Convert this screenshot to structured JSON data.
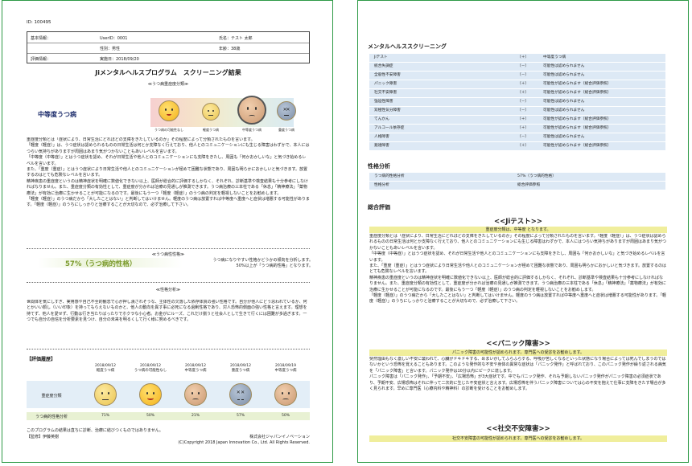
{
  "page1": {
    "id_line": "ID: 100495",
    "info": {
      "basic_label": "基本情報：",
      "userid": "UserID：0001",
      "name": "氏名：テスト 太郎",
      "gender": "性別：男性",
      "age": "年齢：38歳",
      "eval_label": "評価情報：",
      "date": "実施日：2018/09/20"
    },
    "title": "Jiメンタルヘルスプログラム　スクリーニング結果",
    "severity": {
      "section_label": "≪うつ病重症度分類≫",
      "result": "中等度うつ病",
      "scale_labels": [
        "うつ病の可能性なし",
        "軽度うつ病",
        "中等度うつ病",
        "重度うつ病"
      ],
      "text": "重症度分類とは「症状により、日常生活にどれほどの支障をきたしているのか」その程度によって分類されたものを言います。\n「軽度（軽症）」は、うつ症状は認められるものの日常生活は何とか支障なく行えており、他人とのコミュニケーションにも生じる障害はわずかで、本人にはつらい気持ちがありますが周囲はあまり気がつかないこともあいレベルを言います。\n「中等度（中等症）」とはうつ症状を認め、それが日常生活や他人とのコミュニケーションにも支障をきたし、周囲も「何かおかしいな」と気づき始めるレベルを言います。\nまた、「重度（重症）」とはうつ症状により日常生活や他人とのコミュニケーションが極めて困難な状態であり、周囲も明らかにおかしいと気づきます。放置するのはとても危険なレベルを言います。\n精神疾患の重症度というのは精神症状を明確に数値化できない以上、医師が総合的に評価するしかなく、それぞれ、診断基準や検査結果も十分参考にしなければなりません。また、重症度分類の有効性として、重症度が分かれば治療の見通しが推測できます。うつ病治療の三本柱である「休息」「精神療法」「薬物療法」が有効に治療に生かせることが可能になるのです。最後にもう一つ「軽度（軽症）」のうつ病の判定を軽視しないことをお勧めします。\n「軽度（軽症）」のうつ病だから「大したことはない」と判断してはいけません。軽度のうつ病は放置すれば中等度へ重度へと症状は増悪する可能性があります。「軽度（軽症）」のうちにしっかりと治療することが大切なので、必ず治療して下さい。"
    },
    "tendency": {
      "section_label": "≪うつ病性性格≫",
      "percent": "57%（うつ病的性格）",
      "note": "うつ病になりやすい性格かどうかの傾向を分析します。\n50%以上が「うつ病的性格」となります。"
    },
    "personality": {
      "section_label": "≪性格分析≫",
      "text": "世間体を気にしすぎ、実用感や自己不全的観念で心が押し潰されそうな、主体性の欠落した依存体質の強い性格です。自分が他人にどう思われているか、何とかいい顔し（いい印象）を持ってもらえないものかと、他人の動向を異す事に必死になる過剰性格であり、対人恐怖的側面の強い性格と言えます。理想を持てず、他人を愛せず、行動は行き当たりばったりでホクラな小心者。お金がにルーズ、これだけ揃うと社会人として生きて行くには困難が多過ぎます。一つでも自分の自信を分析要素を見つけ、自分の未来を明るくして行く様に努めるべきです。"
    },
    "history": {
      "title": "【評価履歴】",
      "severity_label": "重症度分類",
      "tendency_label": "うつ病的性格分析",
      "columns": [
        {
          "date": "2018/09/12",
          "label": "軽度うつ病",
          "face": "neutral",
          "percent": "71%"
        },
        {
          "date": "2018/09/12",
          "label": "うつ病の可能性なし",
          "face": "happy",
          "percent": "50%"
        },
        {
          "date": "2018/09/12",
          "label": "中等度うつ病",
          "face": "sad",
          "percent": "21%"
        },
        {
          "date": "2018/09/12",
          "label": "重度うつ病",
          "face": "worst",
          "percent": "57%"
        },
        {
          "date": "2018/09/19",
          "label": "中等度うつ病",
          "face": "sad",
          "percent": "50%"
        }
      ]
    },
    "footer": {
      "note": "このプログラムの結果は直ちに診断、治療に結びつくものではありません。",
      "supervisor": "【監修】伊藤英樹",
      "company": "株式会社ジャパンイノベーション",
      "copyright": "(C)Copyright 2018 Japan Innovation Co., Ltd. All Rights Reserved."
    }
  },
  "page2": {
    "screening_title": "メンタルヘルススクリーニング",
    "screening_rows": [
      {
        "name": "Jiテスト",
        "sign": "（＋）",
        "result": "中等度うつ病"
      },
      {
        "name": "統合失調症",
        "sign": "（－）",
        "result": "可能性は認められません"
      },
      {
        "name": "全般性不安障害",
        "sign": "（－）",
        "result": "可能性は認められません"
      },
      {
        "name": "パニック障害",
        "sign": "（＋）",
        "result": "可能性が認められます（総合評価参照）"
      },
      {
        "name": "社交不安障害",
        "sign": "（＋）",
        "result": "可能性が認められます（総合評価参照）"
      },
      {
        "name": "強迫性障害",
        "sign": "（－）",
        "result": "可能性は認められません"
      },
      {
        "name": "双極性気分障害",
        "sign": "（－）",
        "result": "可能性は認められません"
      },
      {
        "name": "てんかん",
        "sign": "（＋）",
        "result": "可能性が認められます（総合評価参照）"
      },
      {
        "name": "アルコール依存症",
        "sign": "（＋）",
        "result": "可能性が認められます（総合評価参照）"
      },
      {
        "name": "人格障害",
        "sign": "（－）",
        "result": "可能性は認められません"
      },
      {
        "name": "発達障害",
        "sign": "（＋）",
        "result": "可能性が認められます（総合評価参照）"
      }
    ],
    "personality_title": "性格分析",
    "personality_rows": [
      {
        "name": "うつ病的性格分析",
        "result": "57%（うつ病的性格）"
      },
      {
        "name": "性格分析",
        "result": "総合評価参照"
      }
    ],
    "overall_title": "総合評価",
    "ji": {
      "heading": "<<Jiテスト>>",
      "highlight": "重症度分類は、中等度 となります。",
      "text": "重症度分類とは「症状により、日常生活にどれほどの支障をきたしているのか」その程度によって分類されたものを言います。「軽度（軽症）」は、うつ症状は認められるものの日常生活は何とか支障なく行えており、他人とのコミュニケーションにも生じる障害はわずかで、本人にはつらい気持ちがありますが周囲はあまり気がつかないこともあいレベルを言います。\n「中等度（中等症）」とはうつ症状を認め、それが日常生活や他人とのコミュニケーションにも支障をきたし、周囲も「何かおかしいな」と気づき始めるレベルを言います。\nまた、「重度（重症）」とはうつ症状により日常生活や他人とのコミュニケーションが極めて困難な状態であり、周囲も明らかにおかしいと気づきます。放置するのはとても危険なレベルを言います。\n精神疾患の重症度というのは精神症状を明確に数値化できない以上、医師が総合的に評価するしかなく、それぞれ、診断基準や検査結果も十分参考にしなければなりません。また、重症度分類の有効性として、重症度が分かれば治療の見通しが推測できます。うつ病治療の三本柱である「休息」「精神療法」「薬物療法」が有効に治療に生かせることが可能になるのです。最後にもう一つ「軽度（軽症）」のうつ病の判定を軽視しないことをお勧めします。\n「軽度（軽症）」のうつ病だから「大したことはない」と判断してはいけません。軽度のうつ病は放置すれば中等度へ重度へと症状は増悪する可能性があります。「軽度（軽症）」のうちにしっかりと治療することが大切なので、必ず治療して下さい。"
    },
    "panic": {
      "heading": "<<パニック障害>>",
      "highlight": "パニック障害の可能性が認められます。専門医への受診をお勧めします。",
      "text": "突然理由もなく激しい不安に襲われて、心臓がドキドキする、めまいがしてふらふらする、呼吸が苦しくなるといった状態になり場合によっては死んでしまうのではないかという恐怖を覚えることもあります。このような発作的な不安や身体の異常な症状は「パニック発作」と呼ばれており、このパニック発作が繰り返される病気を「パニック障害」と言います。パニック発作は10分以内にピークに達します。\nパニック障害は「パニック発作」、「予期不安」、「広場恐怖」が3大症状です。中でもパニック発作、それも予期しないパニック発作がパニック障害の必須症状であり、予期不安、広場恐怖はそれに伴って二次的に生じた不安症状と言えます。広場恐怖を伴うパニック障害については心の不安を抱えて仕事に支障をきたす場合が多く見られます。早めに専門医（心療内科や精神科）の診断を受けることをお勧めします。"
    },
    "social": {
      "heading": "<<社交不安障害>>",
      "highlight": "社交不安障害の可能性が認められます。専門医への受診をお勧めします。"
    },
    "colors": {
      "band_blue": "#dde9f5",
      "band_green": "#e8f1d3",
      "highlight": "#f0ee9c",
      "border_green": "#2e9a46"
    }
  }
}
